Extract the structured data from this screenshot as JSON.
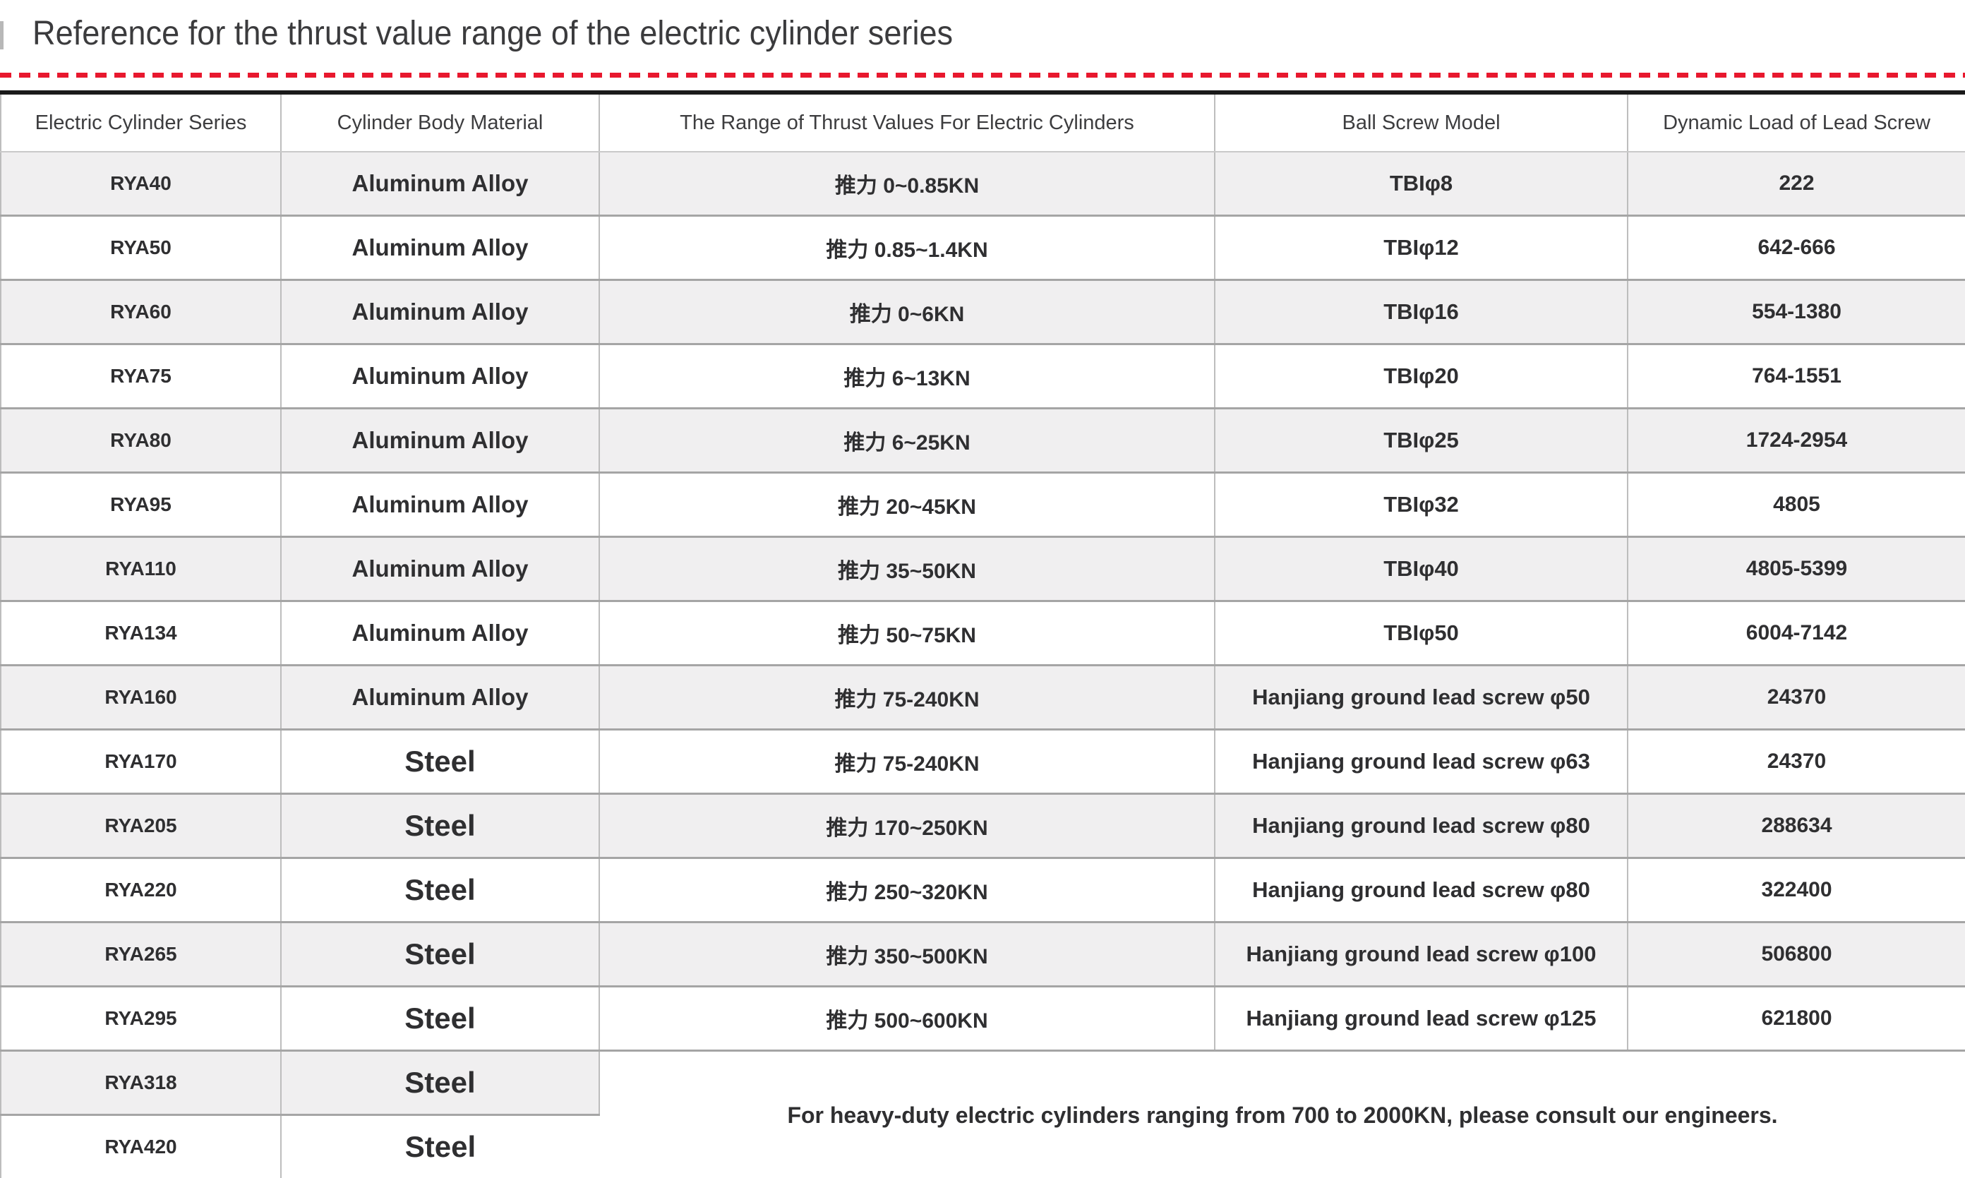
{
  "page_title": "Reference for the thrust value range of the electric cylinder series",
  "colors": {
    "accent_dashed_line_red": "#e8182e",
    "table_top_border": "#1a1a1a",
    "row_stripe_gray": "#f0eff0",
    "row_divider_gray": "#a5a5a5",
    "column_divider_gray": "#bdbdbd",
    "text_dark": "#2f2f31"
  },
  "table": {
    "headers": [
      "Electric Cylinder Series",
      "Cylinder Body Material",
      "The Range of Thrust Values For Electric Cylinders",
      "Ball Screw Model",
      "Dynamic Load of Lead Screw"
    ],
    "rows": [
      {
        "series": "RYA40",
        "material": "Aluminum Alloy",
        "thrust": "推力 0~0.85KN",
        "ball_screw": "TBIφ8",
        "dynamic_load": "222"
      },
      {
        "series": "RYA50",
        "material": "Aluminum Alloy",
        "thrust": "推力 0.85~1.4KN",
        "ball_screw": "TBIφ12",
        "dynamic_load": "642-666"
      },
      {
        "series": "RYA60",
        "material": "Aluminum Alloy",
        "thrust": "推力 0~6KN",
        "ball_screw": "TBIφ16",
        "dynamic_load": "554-1380"
      },
      {
        "series": "RYA75",
        "material": "Aluminum Alloy",
        "thrust": "推力 6~13KN",
        "ball_screw": "TBIφ20",
        "dynamic_load": "764-1551"
      },
      {
        "series": "RYA80",
        "material": "Aluminum Alloy",
        "thrust": "推力 6~25KN",
        "ball_screw": "TBIφ25",
        "dynamic_load": "1724-2954"
      },
      {
        "series": "RYA95",
        "material": "Aluminum Alloy",
        "thrust": "推力 20~45KN",
        "ball_screw": "TBIφ32",
        "dynamic_load": "4805"
      },
      {
        "series": "RYA110",
        "material": "Aluminum Alloy",
        "thrust": "推力 35~50KN",
        "ball_screw": "TBIφ40",
        "dynamic_load": "4805-5399"
      },
      {
        "series": "RYA134",
        "material": "Aluminum Alloy",
        "thrust": "推力 50~75KN",
        "ball_screw": "TBIφ50",
        "dynamic_load": "6004-7142"
      },
      {
        "series": "RYA160",
        "material": "Aluminum Alloy",
        "thrust": "推力 75-240KN",
        "ball_screw": "Hanjiang ground lead screw φ50",
        "dynamic_load": "24370"
      },
      {
        "series": "RYA170",
        "material": "Steel",
        "thrust": "推力 75-240KN",
        "ball_screw": "Hanjiang ground lead screw φ63",
        "dynamic_load": "24370"
      },
      {
        "series": "RYA205",
        "material": "Steel",
        "thrust": "推力 170~250KN",
        "ball_screw": "Hanjiang ground lead screw φ80",
        "dynamic_load": "288634"
      },
      {
        "series": "RYA220",
        "material": "Steel",
        "thrust": "推力 250~320KN",
        "ball_screw": "Hanjiang ground lead screw φ80",
        "dynamic_load": "322400"
      },
      {
        "series": "RYA265",
        "material": "Steel",
        "thrust": "推力 350~500KN",
        "ball_screw": "Hanjiang ground lead screw φ100",
        "dynamic_load": "506800"
      },
      {
        "series": "RYA295",
        "material": "Steel",
        "thrust": "推力 500~600KN",
        "ball_screw": "Hanjiang ground lead screw φ125",
        "dynamic_load": "621800"
      },
      {
        "series": "RYA318",
        "material": "Steel"
      },
      {
        "series": "RYA420",
        "material": "Steel"
      }
    ],
    "footer_note": "For heavy-duty electric cylinders ranging from 700 to 2000KN, please consult our engineers."
  }
}
